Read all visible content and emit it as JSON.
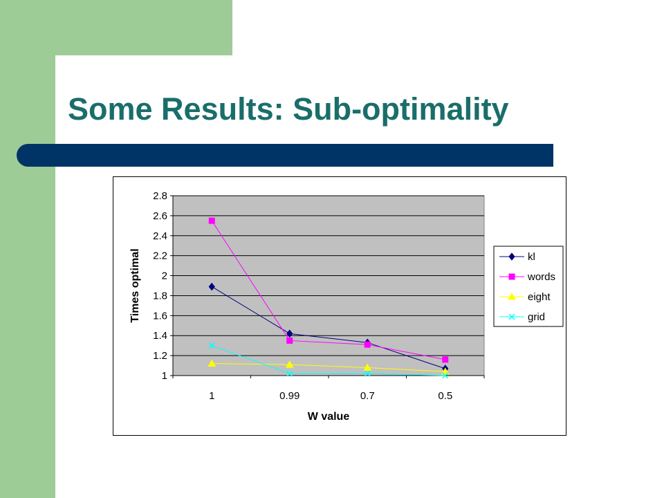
{
  "slide": {
    "title": "Some Results: Sub-optimality"
  },
  "colors": {
    "background_green": "#9dcc96",
    "title_teal": "#1a6e6a",
    "bar_navy": "#003466",
    "plot_area": "#c0c0c0"
  },
  "chart_data": {
    "type": "line",
    "title": "",
    "xlabel": "W value",
    "ylabel": "Times optimal",
    "categories": [
      "1",
      "0.99",
      "0.7",
      "0.5"
    ],
    "ylim": [
      1,
      2.8
    ],
    "yticks": [
      "1",
      "1.2",
      "1.4",
      "1.6",
      "1.8",
      "2",
      "2.2",
      "2.4",
      "2.6",
      "2.8"
    ],
    "grid": true,
    "legend_position": "right",
    "series": [
      {
        "name": "kl",
        "values": [
          1.89,
          1.42,
          1.33,
          1.07
        ],
        "color": "#000080",
        "marker": "diamond"
      },
      {
        "name": "words",
        "values": [
          2.55,
          1.35,
          1.31,
          1.16
        ],
        "color": "#ff00ff",
        "marker": "square"
      },
      {
        "name": "eight",
        "values": [
          1.12,
          1.11,
          1.08,
          1.04
        ],
        "color": "#ffff00",
        "marker": "triangle"
      },
      {
        "name": "grid",
        "values": [
          1.3,
          1.02,
          1.02,
          1.0
        ],
        "color": "#00ffff",
        "marker": "x"
      }
    ]
  }
}
